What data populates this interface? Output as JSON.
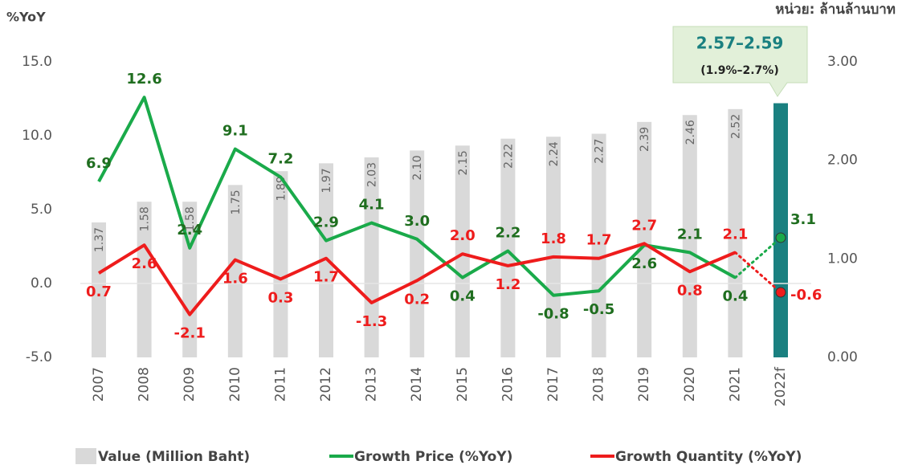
{
  "chart_data": {
    "type": "bar_line",
    "y_axis_label": "%YoY",
    "unit_label": "หน่วย: ล้านล้านบาท",
    "annotation": {
      "title": "2.57–2.59",
      "subtitle": "(1.9%–2.7%)"
    },
    "categories": [
      "2007",
      "2008",
      "2009",
      "2010",
      "2011",
      "2012",
      "2013",
      "2014",
      "2015",
      "2016",
      "2017",
      "2018",
      "2019",
      "2020",
      "2021",
      "2022f"
    ],
    "ylim": [
      -5,
      15
    ],
    "yticks": [
      {
        "value": -5,
        "label": "-5.0"
      },
      {
        "value": 0,
        "label": "0.0"
      },
      {
        "value": 5,
        "label": "5.0"
      },
      {
        "value": 10,
        "label": "10.0"
      },
      {
        "value": 15,
        "label": "15.0"
      }
    ],
    "y2lim": [
      0,
      3
    ],
    "y2ticks": [
      {
        "value": 0,
        "label": "0.00"
      },
      {
        "value": 1,
        "label": "1.00"
      },
      {
        "value": 2,
        "label": "2.00"
      },
      {
        "value": 3,
        "label": "3.00"
      }
    ],
    "dashed_last_segment": true,
    "series": [
      {
        "name": "Value (Million Baht)",
        "kind": "bar",
        "axis": "y2",
        "color": "#d9d9d9",
        "last_color": "#1a8080",
        "values": [
          1.37,
          1.58,
          1.58,
          1.75,
          1.89,
          1.97,
          2.03,
          2.1,
          2.15,
          2.22,
          2.24,
          2.27,
          2.39,
          2.46,
          2.52,
          2.58
        ],
        "value_labels": [
          "1.37",
          "1.58",
          "1.58",
          "1.75",
          "1.89",
          "1.97",
          "2.03",
          "2.10",
          "2.15",
          "2.22",
          "2.24",
          "2.27",
          "2.39",
          "2.46",
          "2.52",
          null
        ]
      },
      {
        "name": "Growth Price (%YoY)",
        "kind": "line",
        "color": "#1aaa4a",
        "label_color": "#1f6e1f",
        "values": [
          6.9,
          12.6,
          2.4,
          9.1,
          7.2,
          2.9,
          4.1,
          3.0,
          0.4,
          2.2,
          -0.8,
          -0.5,
          2.6,
          2.1,
          0.4,
          3.1
        ],
        "value_labels": [
          "6.9",
          "12.6",
          "2.4",
          "9.1",
          "7.2",
          "2.9",
          "4.1",
          "3.0",
          "0.4",
          "2.2",
          "-0.8",
          "-0.5",
          "2.6",
          "2.1",
          "0.4",
          "3.1"
        ]
      },
      {
        "name": "Growth Quantity (%YoY)",
        "kind": "line",
        "color": "#ee1c1c",
        "label_color": "#ee1c1c",
        "values": [
          0.7,
          2.6,
          -2.1,
          1.6,
          0.3,
          1.7,
          -1.3,
          0.2,
          2.0,
          1.2,
          1.8,
          1.7,
          2.7,
          0.8,
          2.1,
          -0.6
        ],
        "value_labels": [
          "0.7",
          "2.6",
          "-2.1",
          "1.6",
          "0.3",
          "1.7",
          "-1.3",
          "0.2",
          "2.0",
          "1.2",
          "1.8",
          "1.7",
          "2.7",
          "0.8",
          "2.1",
          "-0.6"
        ]
      }
    ]
  }
}
